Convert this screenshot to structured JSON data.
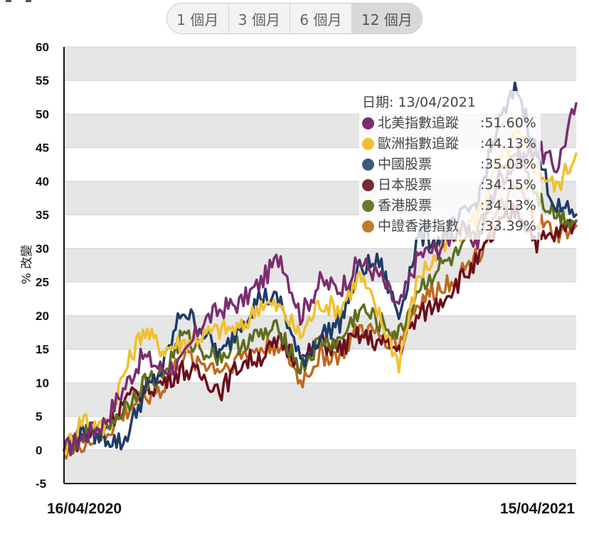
{
  "range_tabs": [
    {
      "label": "1 個月",
      "active": false
    },
    {
      "label": "3 個月",
      "active": false
    },
    {
      "label": "6 個月",
      "active": false
    },
    {
      "label": "12 個月",
      "active": true
    }
  ],
  "tooltip": {
    "date_label": "日期: 13/04/2021",
    "separator": ":",
    "rows": [
      {
        "name": "北美指數追蹤",
        "value": "51.60%",
        "color": "#7b2d6f"
      },
      {
        "name": "歐洲指數追蹤",
        "value": "44.13%",
        "color": "#f0c030"
      },
      {
        "name": "中國股票",
        "value": "35.03%",
        "color": "#3c5a80"
      },
      {
        "name": "日本股票",
        "value": "34.15%",
        "color": "#7a2a32"
      },
      {
        "name": "香港股票",
        "value": "34.13%",
        "color": "#6b7a2a"
      },
      {
        "name": "中證香港指數",
        "value": "33.39%",
        "color": "#c07a2a"
      }
    ]
  },
  "chart_data": {
    "type": "line",
    "title": "",
    "xlabel": "",
    "ylabel": "% 改變",
    "ylim": [
      -5,
      60
    ],
    "yticks": [
      60,
      55,
      50,
      45,
      40,
      35,
      30,
      25,
      20,
      15,
      10,
      5,
      0,
      -5
    ],
    "x_start_label": "16/04/2020",
    "x_end_label": "15/04/2021",
    "x": [
      "16/04/2020",
      "30/04/2020",
      "14/05/2020",
      "28/05/2020",
      "11/06/2020",
      "25/06/2020",
      "09/07/2020",
      "23/07/2020",
      "06/08/2020",
      "20/08/2020",
      "03/09/2020",
      "17/09/2020",
      "01/10/2020",
      "15/10/2020",
      "29/10/2020",
      "12/11/2020",
      "26/11/2020",
      "10/12/2020",
      "24/12/2020",
      "07/01/2021",
      "21/01/2021",
      "04/02/2021",
      "18/02/2021",
      "04/03/2021",
      "18/03/2021",
      "01/04/2021",
      "15/04/2021"
    ],
    "grid": true,
    "band_colors": [
      "#e6e6e6",
      "#ffffff"
    ],
    "series": [
      {
        "color": "#7b2d6f",
        "values": [
          0,
          2,
          4,
          9,
          14,
          12,
          13,
          19,
          21,
          22,
          25,
          29,
          20,
          25,
          24,
          28,
          26,
          21,
          29,
          30,
          33,
          31,
          40,
          43,
          45,
          42,
          51.6
        ]
      },
      {
        "color": "#f0c030",
        "values": [
          0,
          5,
          3,
          11,
          18,
          15,
          16,
          17,
          18,
          18,
          22,
          21,
          17,
          22,
          21,
          26,
          20,
          13,
          26,
          29,
          32,
          35,
          42,
          47,
          42,
          39,
          44.13
        ]
      },
      {
        "color": "#1e3c68",
        "values": [
          0,
          3,
          2,
          1,
          8,
          12,
          21,
          18,
          14,
          19,
          23,
          22,
          13,
          17,
          19,
          27,
          28,
          20,
          32,
          31,
          34,
          37,
          48,
          54,
          44,
          36,
          35.03
        ]
      },
      {
        "color": "#6b0e1c",
        "values": [
          0,
          2,
          3,
          7,
          9,
          10,
          12,
          11,
          9,
          13,
          14,
          16,
          13,
          16,
          15,
          17,
          16,
          15,
          20,
          22,
          25,
          28,
          33,
          36,
          31,
          32,
          34.15
        ]
      },
      {
        "color": "#5e6e1e",
        "values": [
          0,
          2,
          3,
          6,
          10,
          11,
          17,
          15,
          14,
          16,
          17,
          18,
          12,
          16,
          16,
          21,
          19,
          17,
          24,
          27,
          29,
          32,
          40,
          45,
          38,
          35,
          34.13
        ]
      },
      {
        "color": "#c06a1e",
        "values": [
          0,
          1,
          2,
          5,
          8,
          9,
          14,
          13,
          12,
          14,
          15,
          16,
          10,
          14,
          14,
          18,
          17,
          16,
          22,
          24,
          26,
          29,
          35,
          39,
          34,
          32,
          33.39
        ]
      }
    ]
  }
}
